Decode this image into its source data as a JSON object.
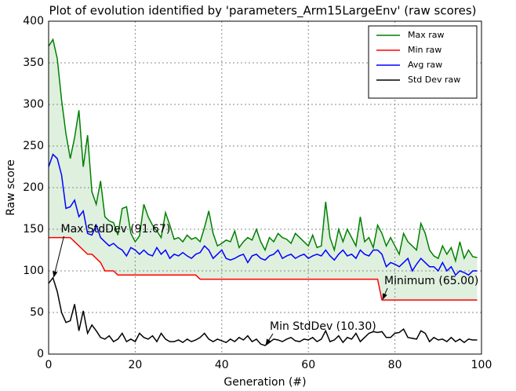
{
  "chart_data": {
    "type": "line",
    "title": "Plot of evolution identified by 'parameters_Arm15LargeEnv' (raw scores)",
    "xlabel": "Generation (#)",
    "ylabel": "Raw score",
    "x": [
      0,
      1,
      2,
      3,
      4,
      5,
      6,
      7,
      8,
      9,
      10,
      11,
      12,
      13,
      14,
      15,
      16,
      17,
      18,
      19,
      20,
      21,
      22,
      23,
      24,
      25,
      26,
      27,
      28,
      29,
      30,
      31,
      32,
      33,
      34,
      35,
      36,
      37,
      38,
      39,
      40,
      41,
      42,
      43,
      44,
      45,
      46,
      47,
      48,
      49,
      50,
      51,
      52,
      53,
      54,
      55,
      56,
      57,
      58,
      59,
      60,
      61,
      62,
      63,
      64,
      65,
      66,
      67,
      68,
      69,
      70,
      71,
      72,
      73,
      74,
      75,
      76,
      77,
      78,
      79,
      80,
      81,
      82,
      83,
      84,
      85,
      86,
      87,
      88,
      89,
      90,
      91,
      92,
      93,
      94,
      95,
      96,
      97,
      98,
      99
    ],
    "series": [
      {
        "name": "Max raw",
        "color": "#008000",
        "values": [
          370,
          378,
          355,
          305,
          265,
          235,
          260,
          293,
          225,
          263,
          195,
          180,
          208,
          165,
          160,
          158,
          143,
          175,
          177,
          145,
          135,
          142,
          180,
          165,
          155,
          148,
          140,
          170,
          155,
          138,
          140,
          135,
          143,
          138,
          140,
          135,
          152,
          172,
          145,
          130,
          133,
          137,
          135,
          148,
          128,
          135,
          140,
          137,
          150,
          135,
          125,
          140,
          135,
          145,
          140,
          138,
          133,
          145,
          140,
          135,
          130,
          143,
          128,
          130,
          183,
          140,
          125,
          150,
          135,
          150,
          140,
          130,
          165,
          135,
          140,
          128,
          155,
          145,
          130,
          140,
          130,
          120,
          145,
          135,
          130,
          125,
          157,
          145,
          125,
          118,
          115,
          130,
          120,
          128,
          112,
          135,
          115,
          125,
          117,
          116
        ]
      },
      {
        "name": "Min raw",
        "color": "#ff0000",
        "values": [
          140,
          140,
          140,
          140,
          140,
          140,
          135,
          130,
          125,
          120,
          120,
          115,
          110,
          100,
          100,
          100,
          95,
          95,
          95,
          95,
          95,
          95,
          95,
          95,
          95,
          95,
          95,
          95,
          95,
          95,
          95,
          95,
          95,
          95,
          95,
          90,
          90,
          90,
          90,
          90,
          90,
          90,
          90,
          90,
          90,
          90,
          90,
          90,
          90,
          90,
          90,
          90,
          90,
          90,
          90,
          90,
          90,
          90,
          90,
          90,
          90,
          90,
          90,
          90,
          90,
          90,
          90,
          90,
          90,
          90,
          90,
          90,
          90,
          90,
          90,
          90,
          90,
          65,
          65,
          65,
          65,
          65,
          65,
          65,
          65,
          65,
          65,
          65,
          65,
          65,
          65,
          65,
          65,
          65,
          65,
          65,
          65,
          65,
          65,
          65
        ]
      },
      {
        "name": "Avg raw",
        "color": "#0000ff",
        "values": [
          225,
          240,
          235,
          215,
          175,
          177,
          185,
          165,
          172,
          145,
          143,
          155,
          140,
          135,
          130,
          133,
          128,
          125,
          118,
          128,
          125,
          120,
          125,
          120,
          118,
          128,
          120,
          125,
          115,
          120,
          118,
          122,
          118,
          115,
          120,
          122,
          130,
          125,
          115,
          120,
          125,
          115,
          113,
          115,
          118,
          120,
          110,
          118,
          120,
          115,
          113,
          118,
          120,
          125,
          115,
          118,
          120,
          115,
          118,
          120,
          115,
          118,
          120,
          118,
          125,
          118,
          113,
          120,
          125,
          118,
          120,
          115,
          125,
          120,
          118,
          125,
          125,
          120,
          105,
          110,
          108,
          105,
          110,
          115,
          100,
          108,
          115,
          110,
          105,
          105,
          100,
          110,
          100,
          105,
          95,
          100,
          98,
          95,
          100,
          100
        ]
      },
      {
        "name": "Std Dev raw",
        "color": "#000000",
        "values": [
          85,
          91.67,
          75,
          50,
          38,
          40,
          60,
          28,
          52,
          25,
          35,
          28,
          20,
          18,
          22,
          15,
          18,
          25,
          15,
          18,
          15,
          25,
          20,
          18,
          22,
          15,
          25,
          18,
          15,
          15,
          17,
          14,
          18,
          15,
          17,
          20,
          25,
          18,
          15,
          18,
          16,
          14,
          18,
          15,
          20,
          17,
          22,
          15,
          18,
          12,
          10.3,
          14,
          18,
          17,
          15,
          18,
          20,
          16,
          15,
          18,
          17,
          20,
          15,
          18,
          28,
          15,
          17,
          22,
          14,
          20,
          18,
          25,
          15,
          20,
          25,
          27,
          26,
          27,
          20,
          20,
          25,
          26,
          30,
          20,
          19,
          18,
          28,
          25,
          15,
          20,
          17,
          18,
          15,
          20,
          15,
          18,
          14,
          18,
          17,
          17
        ]
      }
    ],
    "annotations": [
      {
        "text": "Max StdDev (91.67)",
        "xy": [
          1,
          91.67
        ]
      },
      {
        "text": "Minimum (65.00)",
        "xy": [
          77,
          65
        ]
      },
      {
        "text": "Min StdDev (10.30)",
        "xy": [
          50,
          10.3
        ]
      }
    ],
    "xlim": [
      0,
      100
    ],
    "xticks": [
      0,
      20,
      40,
      60,
      80,
      100
    ],
    "ylim": [
      0,
      400
    ],
    "yticks": [
      0,
      50,
      100,
      150,
      200,
      250,
      300,
      350,
      400
    ],
    "grid": true,
    "legend": "upper right",
    "fill_color": "#dff0df"
  }
}
